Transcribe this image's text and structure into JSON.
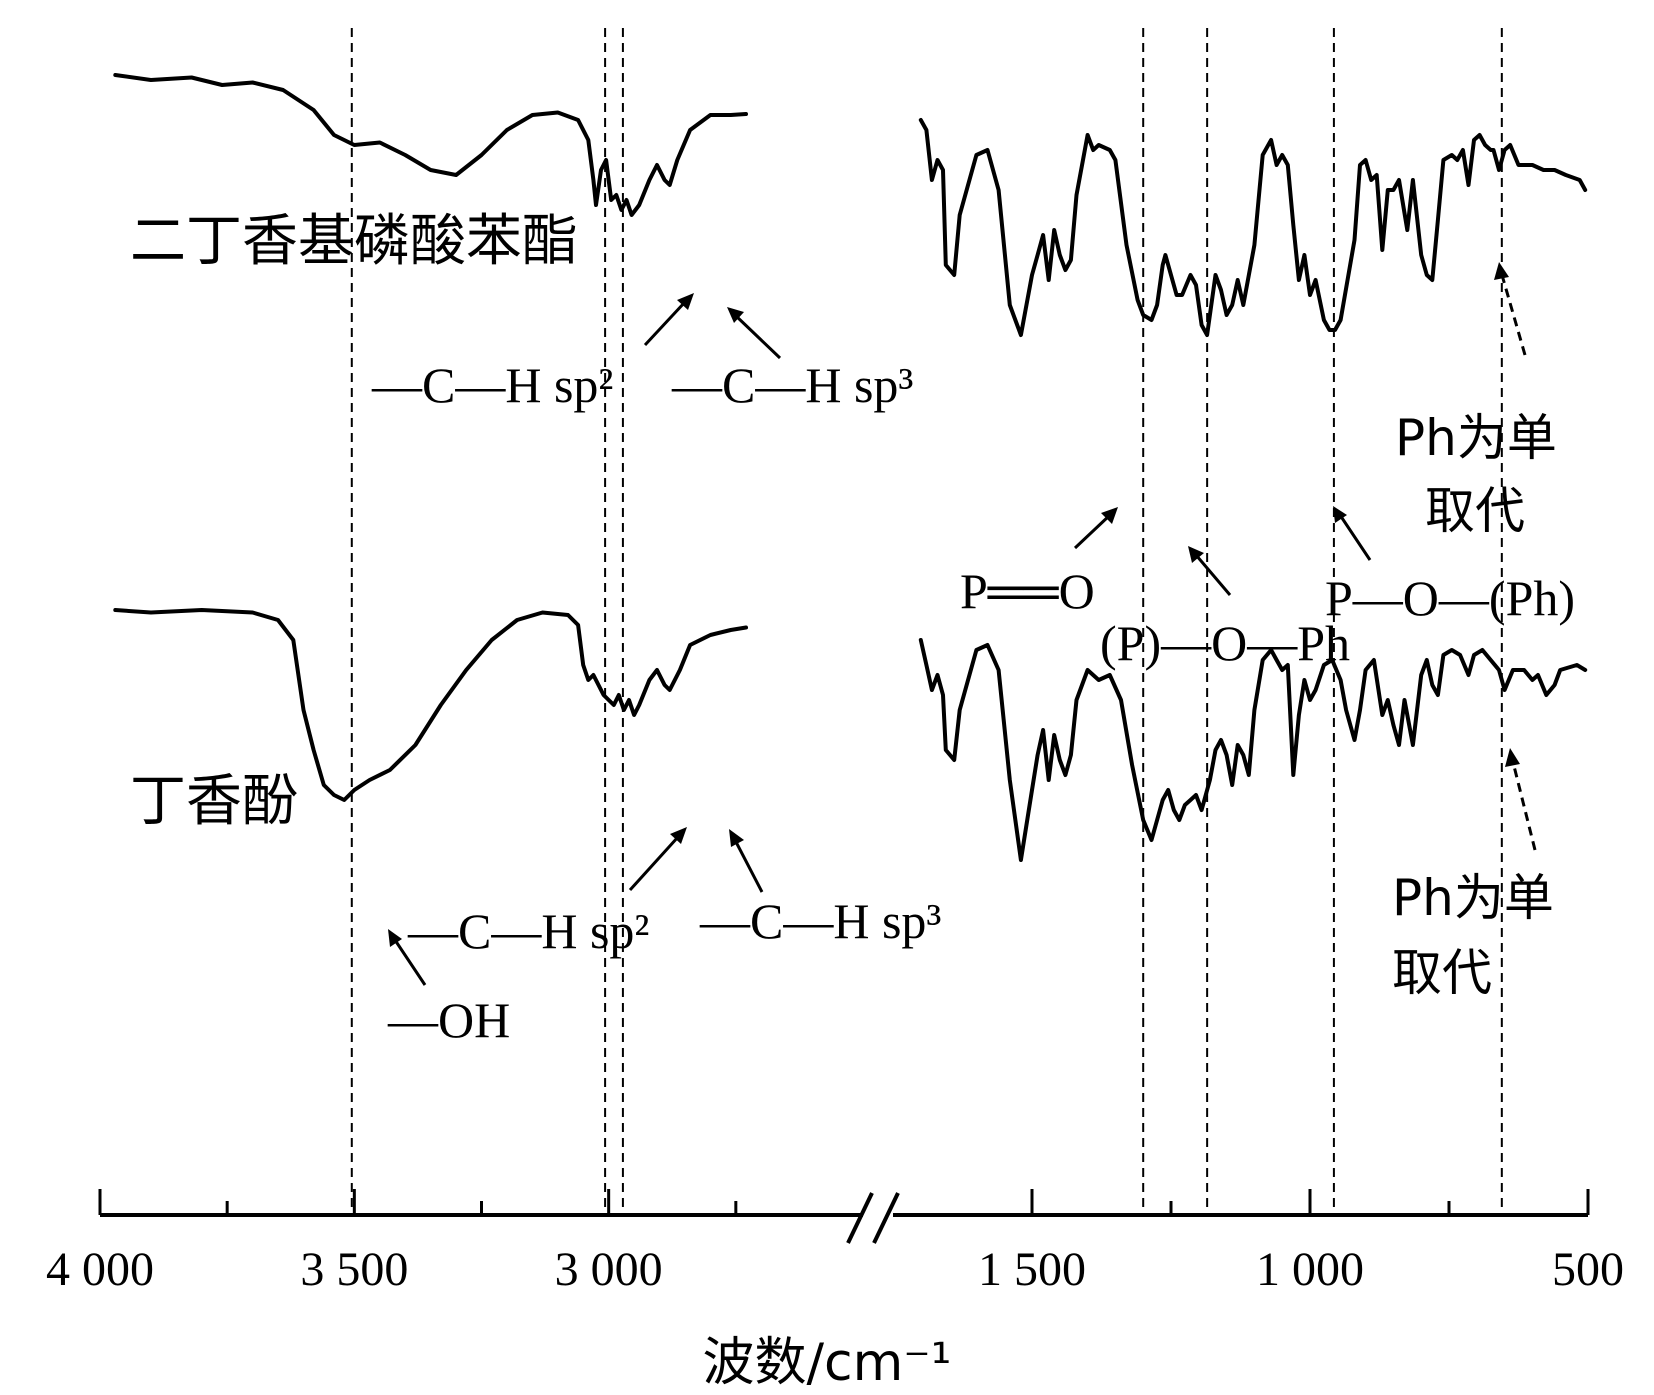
{
  "chart_data": {
    "type": "line",
    "title": "",
    "xlabel": "波数/cm⁻¹",
    "ylabel": "",
    "x_reversed": true,
    "axis_break": true,
    "x_segments": [
      {
        "range": [
          4000,
          2500
        ]
      },
      {
        "range": [
          1750,
          500
        ]
      }
    ],
    "xticks": [
      {
        "value": 4000,
        "label": "4 000"
      },
      {
        "value": 3500,
        "label": "3 500"
      },
      {
        "value": 3000,
        "label": "3 000"
      },
      {
        "value": 1500,
        "label": "1 500"
      },
      {
        "value": 1000,
        "label": "1 000"
      },
      {
        "value": 500,
        "label": "500"
      }
    ],
    "minor_ticks": [
      3750,
      3250,
      2750,
      1250,
      750
    ],
    "guides": [
      3505,
      3007,
      2972,
      1300,
      1185,
      957,
      655
    ],
    "series": [
      {
        "name": "二丁香基磷酸苯酯",
        "points": [
          [
            3970,
            0.97
          ],
          [
            3900,
            0.96
          ],
          [
            3820,
            0.965
          ],
          [
            3760,
            0.95
          ],
          [
            3700,
            0.955
          ],
          [
            3640,
            0.94
          ],
          [
            3580,
            0.9
          ],
          [
            3540,
            0.85
          ],
          [
            3500,
            0.83
          ],
          [
            3450,
            0.835
          ],
          [
            3400,
            0.81
          ],
          [
            3350,
            0.78
          ],
          [
            3300,
            0.77
          ],
          [
            3250,
            0.81
          ],
          [
            3200,
            0.86
          ],
          [
            3150,
            0.89
          ],
          [
            3100,
            0.895
          ],
          [
            3060,
            0.88
          ],
          [
            3040,
            0.84
          ],
          [
            3030,
            0.76
          ],
          [
            3025,
            0.71
          ],
          [
            3015,
            0.78
          ],
          [
            3005,
            0.8
          ],
          [
            2995,
            0.72
          ],
          [
            2985,
            0.73
          ],
          [
            2975,
            0.7
          ],
          [
            2965,
            0.72
          ],
          [
            2955,
            0.69
          ],
          [
            2940,
            0.71
          ],
          [
            2920,
            0.76
          ],
          [
            2905,
            0.79
          ],
          [
            2890,
            0.76
          ],
          [
            2880,
            0.75
          ],
          [
            2865,
            0.8
          ],
          [
            2840,
            0.86
          ],
          [
            2800,
            0.89
          ],
          [
            2760,
            0.89
          ],
          [
            2730,
            0.892
          ],
          [
            1700,
            0.88
          ],
          [
            1690,
            0.86
          ],
          [
            1680,
            0.76
          ],
          [
            1670,
            0.8
          ],
          [
            1660,
            0.78
          ],
          [
            1655,
            0.59
          ],
          [
            1640,
            0.57
          ],
          [
            1630,
            0.69
          ],
          [
            1600,
            0.81
          ],
          [
            1580,
            0.82
          ],
          [
            1560,
            0.74
          ],
          [
            1540,
            0.51
          ],
          [
            1520,
            0.45
          ],
          [
            1500,
            0.57
          ],
          [
            1490,
            0.61
          ],
          [
            1480,
            0.65
          ],
          [
            1470,
            0.56
          ],
          [
            1460,
            0.66
          ],
          [
            1450,
            0.61
          ],
          [
            1440,
            0.58
          ],
          [
            1430,
            0.6
          ],
          [
            1420,
            0.73
          ],
          [
            1400,
            0.85
          ],
          [
            1390,
            0.82
          ],
          [
            1380,
            0.83
          ],
          [
            1360,
            0.82
          ],
          [
            1350,
            0.8
          ],
          [
            1330,
            0.63
          ],
          [
            1310,
            0.52
          ],
          [
            1300,
            0.49
          ],
          [
            1285,
            0.48
          ],
          [
            1275,
            0.51
          ],
          [
            1265,
            0.59
          ],
          [
            1260,
            0.61
          ],
          [
            1250,
            0.57
          ],
          [
            1240,
            0.53
          ],
          [
            1230,
            0.53
          ],
          [
            1215,
            0.57
          ],
          [
            1205,
            0.55
          ],
          [
            1195,
            0.47
          ],
          [
            1185,
            0.45
          ],
          [
            1170,
            0.57
          ],
          [
            1160,
            0.54
          ],
          [
            1150,
            0.49
          ],
          [
            1140,
            0.51
          ],
          [
            1130,
            0.56
          ],
          [
            1120,
            0.51
          ],
          [
            1100,
            0.63
          ],
          [
            1085,
            0.81
          ],
          [
            1070,
            0.84
          ],
          [
            1060,
            0.79
          ],
          [
            1050,
            0.81
          ],
          [
            1040,
            0.79
          ],
          [
            1030,
            0.67
          ],
          [
            1020,
            0.56
          ],
          [
            1010,
            0.61
          ],
          [
            1000,
            0.53
          ],
          [
            990,
            0.56
          ],
          [
            975,
            0.48
          ],
          [
            965,
            0.46
          ],
          [
            955,
            0.46
          ],
          [
            945,
            0.48
          ],
          [
            920,
            0.64
          ],
          [
            910,
            0.79
          ],
          [
            900,
            0.8
          ],
          [
            890,
            0.76
          ],
          [
            880,
            0.77
          ],
          [
            870,
            0.62
          ],
          [
            860,
            0.74
          ],
          [
            850,
            0.74
          ],
          [
            840,
            0.76
          ],
          [
            825,
            0.66
          ],
          [
            815,
            0.76
          ],
          [
            800,
            0.61
          ],
          [
            790,
            0.57
          ],
          [
            780,
            0.56
          ],
          [
            770,
            0.68
          ],
          [
            760,
            0.8
          ],
          [
            745,
            0.81
          ],
          [
            735,
            0.8
          ],
          [
            725,
            0.82
          ],
          [
            715,
            0.75
          ],
          [
            705,
            0.84
          ],
          [
            695,
            0.85
          ],
          [
            685,
            0.83
          ],
          [
            675,
            0.82
          ],
          [
            670,
            0.82
          ],
          [
            660,
            0.78
          ],
          [
            650,
            0.82
          ],
          [
            640,
            0.83
          ],
          [
            625,
            0.79
          ],
          [
            600,
            0.79
          ],
          [
            580,
            0.78
          ],
          [
            560,
            0.78
          ],
          [
            540,
            0.77
          ],
          [
            515,
            0.76
          ],
          [
            505,
            0.74
          ]
        ]
      },
      {
        "name": "丁香酚",
        "points": [
          [
            3970,
            0.98
          ],
          [
            3900,
            0.975
          ],
          [
            3800,
            0.98
          ],
          [
            3700,
            0.975
          ],
          [
            3650,
            0.96
          ],
          [
            3620,
            0.92
          ],
          [
            3600,
            0.78
          ],
          [
            3580,
            0.7
          ],
          [
            3560,
            0.63
          ],
          [
            3540,
            0.61
          ],
          [
            3520,
            0.6
          ],
          [
            3500,
            0.62
          ],
          [
            3470,
            0.64
          ],
          [
            3430,
            0.66
          ],
          [
            3380,
            0.71
          ],
          [
            3330,
            0.79
          ],
          [
            3280,
            0.86
          ],
          [
            3230,
            0.92
          ],
          [
            3180,
            0.96
          ],
          [
            3130,
            0.975
          ],
          [
            3080,
            0.97
          ],
          [
            3060,
            0.95
          ],
          [
            3050,
            0.87
          ],
          [
            3040,
            0.84
          ],
          [
            3030,
            0.85
          ],
          [
            3020,
            0.83
          ],
          [
            3010,
            0.81
          ],
          [
            3000,
            0.8
          ],
          [
            2990,
            0.79
          ],
          [
            2980,
            0.81
          ],
          [
            2970,
            0.78
          ],
          [
            2960,
            0.8
          ],
          [
            2950,
            0.77
          ],
          [
            2940,
            0.79
          ],
          [
            2920,
            0.84
          ],
          [
            2905,
            0.86
          ],
          [
            2890,
            0.83
          ],
          [
            2880,
            0.82
          ],
          [
            2860,
            0.86
          ],
          [
            2840,
            0.91
          ],
          [
            2800,
            0.93
          ],
          [
            2760,
            0.94
          ],
          [
            2730,
            0.945
          ],
          [
            1700,
            0.92
          ],
          [
            1690,
            0.87
          ],
          [
            1680,
            0.82
          ],
          [
            1670,
            0.85
          ],
          [
            1660,
            0.81
          ],
          [
            1655,
            0.7
          ],
          [
            1640,
            0.68
          ],
          [
            1630,
            0.78
          ],
          [
            1600,
            0.9
          ],
          [
            1580,
            0.91
          ],
          [
            1560,
            0.86
          ],
          [
            1540,
            0.64
          ],
          [
            1520,
            0.48
          ],
          [
            1500,
            0.62
          ],
          [
            1490,
            0.69
          ],
          [
            1480,
            0.74
          ],
          [
            1470,
            0.64
          ],
          [
            1460,
            0.73
          ],
          [
            1450,
            0.68
          ],
          [
            1440,
            0.65
          ],
          [
            1430,
            0.69
          ],
          [
            1420,
            0.8
          ],
          [
            1400,
            0.86
          ],
          [
            1380,
            0.84
          ],
          [
            1360,
            0.85
          ],
          [
            1340,
            0.8
          ],
          [
            1320,
            0.67
          ],
          [
            1300,
            0.56
          ],
          [
            1285,
            0.52
          ],
          [
            1275,
            0.56
          ],
          [
            1265,
            0.6
          ],
          [
            1255,
            0.62
          ],
          [
            1245,
            0.58
          ],
          [
            1235,
            0.56
          ],
          [
            1225,
            0.59
          ],
          [
            1215,
            0.6
          ],
          [
            1205,
            0.61
          ],
          [
            1195,
            0.58
          ],
          [
            1180,
            0.64
          ],
          [
            1170,
            0.7
          ],
          [
            1160,
            0.72
          ],
          [
            1150,
            0.69
          ],
          [
            1140,
            0.63
          ],
          [
            1130,
            0.71
          ],
          [
            1120,
            0.69
          ],
          [
            1110,
            0.65
          ],
          [
            1100,
            0.78
          ],
          [
            1085,
            0.88
          ],
          [
            1070,
            0.9
          ],
          [
            1060,
            0.88
          ],
          [
            1050,
            0.86
          ],
          [
            1040,
            0.87
          ],
          [
            1030,
            0.65
          ],
          [
            1020,
            0.77
          ],
          [
            1010,
            0.84
          ],
          [
            1000,
            0.8
          ],
          [
            990,
            0.82
          ],
          [
            975,
            0.87
          ],
          [
            960,
            0.88
          ],
          [
            945,
            0.84
          ],
          [
            935,
            0.78
          ],
          [
            920,
            0.72
          ],
          [
            910,
            0.78
          ],
          [
            900,
            0.86
          ],
          [
            885,
            0.88
          ],
          [
            870,
            0.77
          ],
          [
            860,
            0.8
          ],
          [
            850,
            0.75
          ],
          [
            840,
            0.71
          ],
          [
            830,
            0.8
          ],
          [
            815,
            0.71
          ],
          [
            800,
            0.85
          ],
          [
            790,
            0.88
          ],
          [
            780,
            0.83
          ],
          [
            770,
            0.81
          ],
          [
            760,
            0.89
          ],
          [
            745,
            0.9
          ],
          [
            730,
            0.89
          ],
          [
            715,
            0.85
          ],
          [
            705,
            0.89
          ],
          [
            690,
            0.9
          ],
          [
            675,
            0.88
          ],
          [
            660,
            0.86
          ],
          [
            650,
            0.82
          ],
          [
            635,
            0.86
          ],
          [
            615,
            0.86
          ],
          [
            600,
            0.84
          ],
          [
            590,
            0.85
          ],
          [
            575,
            0.81
          ],
          [
            560,
            0.83
          ],
          [
            550,
            0.86
          ],
          [
            520,
            0.87
          ],
          [
            505,
            0.86
          ]
        ]
      }
    ],
    "annotations": {
      "top_ch_sp2": "—C—H sp²",
      "top_ch_sp3": "—C—H sp³",
      "bottom_ch_sp2": "—C—H sp²",
      "bottom_ch_sp3": "—C—H sp³",
      "oh": "—OH",
      "po_double": "P══O",
      "p_o_ph": "(P)—O—Ph",
      "p_o_ph2": "P—O—(Ph)",
      "ph_mono_top_1": "Ph为单",
      "ph_mono_top_2": "取代",
      "ph_mono_bot_1": "Ph为单",
      "ph_mono_bot_2": "取代"
    }
  }
}
